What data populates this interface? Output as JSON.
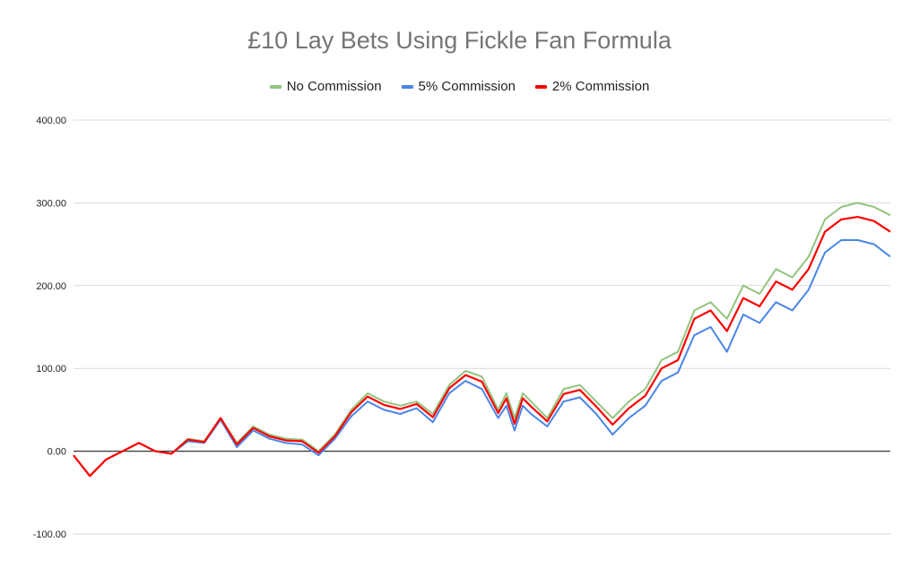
{
  "chart_data": {
    "type": "line",
    "title": "£10 Lay Bets Using Fickle Fan Formula",
    "xlabel": "",
    "ylabel": "",
    "ylim": [
      -100,
      400
    ],
    "yticks": [
      "400.00",
      "300.00",
      "200.00",
      "100.00",
      "0.00",
      "-100.00"
    ],
    "ytick_values": [
      400,
      300,
      200,
      100,
      0,
      -100
    ],
    "grid": true,
    "legend_position": "top-center",
    "x": [
      0,
      10,
      20,
      30,
      40,
      50,
      60,
      70,
      80,
      90,
      100,
      110,
      120,
      130,
      140,
      150,
      160,
      170,
      180,
      190,
      200,
      210,
      220,
      230,
      240,
      250,
      260,
      265,
      270,
      275,
      280,
      290,
      300,
      310,
      320,
      330,
      340,
      350,
      360,
      370,
      380,
      390,
      400,
      410,
      420,
      430,
      440,
      450,
      460,
      470,
      480,
      490,
      500
    ],
    "series": [
      {
        "name": "No Commission",
        "color": "#93c47d",
        "values": [
          -5,
          -30,
          -10,
          0,
          10,
          0,
          -3,
          15,
          12,
          40,
          10,
          30,
          20,
          15,
          14,
          0,
          20,
          50,
          70,
          60,
          55,
          60,
          45,
          80,
          97,
          90,
          50,
          70,
          40,
          70,
          60,
          40,
          75,
          80,
          60,
          40,
          60,
          75,
          110,
          120,
          170,
          180,
          160,
          200,
          190,
          220,
          210,
          235,
          280,
          295,
          300,
          295,
          285
        ]
      },
      {
        "name": "5% Commission",
        "color": "#4a86e8",
        "values": [
          -5,
          -30,
          -10,
          0,
          10,
          0,
          -3,
          12,
          10,
          38,
          5,
          25,
          15,
          10,
          8,
          -5,
          15,
          42,
          60,
          50,
          45,
          52,
          35,
          70,
          85,
          75,
          40,
          55,
          25,
          55,
          45,
          30,
          60,
          65,
          45,
          20,
          40,
          55,
          85,
          95,
          140,
          150,
          120,
          165,
          155,
          180,
          170,
          195,
          240,
          255,
          255,
          250,
          235
        ]
      },
      {
        "name": "2% Commission",
        "color": "#ff0000",
        "values": [
          -5,
          -30,
          -10,
          0,
          10,
          0,
          -3,
          14,
          11,
          40,
          8,
          28,
          18,
          13,
          12,
          -2,
          18,
          47,
          66,
          56,
          51,
          57,
          41,
          76,
          92,
          84,
          46,
          64,
          33,
          64,
          54,
          36,
          69,
          74,
          54,
          32,
          52,
          67,
          100,
          110,
          160,
          170,
          145,
          185,
          175,
          205,
          195,
          220,
          265,
          280,
          283,
          278,
          265
        ]
      }
    ]
  }
}
